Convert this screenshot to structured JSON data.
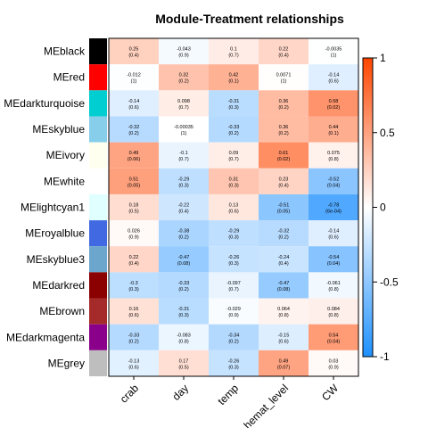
{
  "chart_data": {
    "type": "heatmap",
    "title": "Module-Treatment relationships",
    "columns": [
      "crab",
      "day",
      "temp",
      "hemat_level",
      "CW"
    ],
    "rows": [
      {
        "name": "MEblack",
        "color": "#000000",
        "values": [
          0.25,
          -0.043,
          0.1,
          0.22,
          -0.0035
        ],
        "pvalues": [
          "0.4",
          "0.9",
          "0.7",
          "0.4",
          "1"
        ]
      },
      {
        "name": "MEred",
        "color": "#ff0000",
        "values": [
          -0.012,
          0.32,
          0.42,
          0.0071,
          -0.14
        ],
        "pvalues": [
          "1",
          "0.2",
          "0.1",
          "1",
          "0.6"
        ]
      },
      {
        "name": "MEdarkturquoise",
        "color": "#00ced1",
        "values": [
          -0.14,
          0.098,
          -0.31,
          0.36,
          0.58
        ],
        "pvalues": [
          "0.6",
          "0.7",
          "0.3",
          "0.2",
          "0.02"
        ]
      },
      {
        "name": "MEskyblue",
        "color": "#87ceeb",
        "values": [
          -0.32,
          -0.00035,
          -0.33,
          0.36,
          0.44
        ],
        "pvalues": [
          "0.2",
          "1",
          "0.2",
          "0.2",
          "0.1"
        ]
      },
      {
        "name": "MEivory",
        "color": "#fffff0",
        "values": [
          0.49,
          -0.1,
          0.09,
          0.61,
          0.075
        ],
        "pvalues": [
          "0.06",
          "0.7",
          "0.7",
          "0.02",
          "0.8"
        ]
      },
      {
        "name": "MEwhite",
        "color": "#ffffff",
        "values": [
          0.51,
          -0.29,
          0.31,
          0.23,
          -0.52
        ],
        "pvalues": [
          "0.05",
          "0.3",
          "0.3",
          "0.4",
          "0.04"
        ]
      },
      {
        "name": "MElightcyan1",
        "color": "#e0ffff",
        "values": [
          0.18,
          -0.22,
          0.13,
          -0.51,
          -0.78
        ],
        "pvalues": [
          "0.5",
          "0.4",
          "0.6",
          "0.05",
          "6e-04"
        ]
      },
      {
        "name": "MEroyalblue",
        "color": "#4169e1",
        "values": [
          0.026,
          -0.38,
          -0.29,
          -0.32,
          -0.14
        ],
        "pvalues": [
          "0.9",
          "0.2",
          "0.3",
          "0.2",
          "0.6"
        ]
      },
      {
        "name": "MEskyblue3",
        "color": "#6ca6cd",
        "values": [
          0.22,
          -0.47,
          -0.26,
          -0.24,
          -0.54
        ],
        "pvalues": [
          "0.4",
          "0.08",
          "0.3",
          "0.4",
          "0.04"
        ]
      },
      {
        "name": "MEdarkred",
        "color": "#8b0000",
        "values": [
          -0.3,
          -0.33,
          -0.097,
          -0.47,
          -0.061
        ],
        "pvalues": [
          "0.3",
          "0.2",
          "0.7",
          "0.08",
          "0.8"
        ]
      },
      {
        "name": "MEbrown",
        "color": "#a52a2a",
        "values": [
          0.16,
          -0.31,
          -0.029,
          0.064,
          0.084
        ],
        "pvalues": [
          "0.6",
          "0.3",
          "0.9",
          "0.8",
          "0.8"
        ]
      },
      {
        "name": "MEdarkmagenta",
        "color": "#8b008b",
        "values": [
          -0.33,
          -0.083,
          -0.34,
          -0.15,
          0.54
        ],
        "pvalues": [
          "0.2",
          "0.8",
          "0.2",
          "0.6",
          "0.04"
        ]
      },
      {
        "name": "MEgrey",
        "color": "#bebebe",
        "values": [
          -0.13,
          0.17,
          -0.26,
          0.49,
          0.03
        ],
        "pvalues": [
          "0.6",
          "0.5",
          "0.3",
          "0.07",
          "0.9"
        ]
      }
    ],
    "colorbar": {
      "range": [
        -1,
        1
      ],
      "ticks": [
        1,
        0.5,
        0,
        -0.5,
        -1
      ],
      "tick_labels": [
        "1",
        "0.5",
        "0",
        "-0.5",
        "-1"
      ],
      "colors": {
        "low": "#1e90ff",
        "mid": "#ffffff",
        "high": "#ff4500"
      }
    }
  }
}
